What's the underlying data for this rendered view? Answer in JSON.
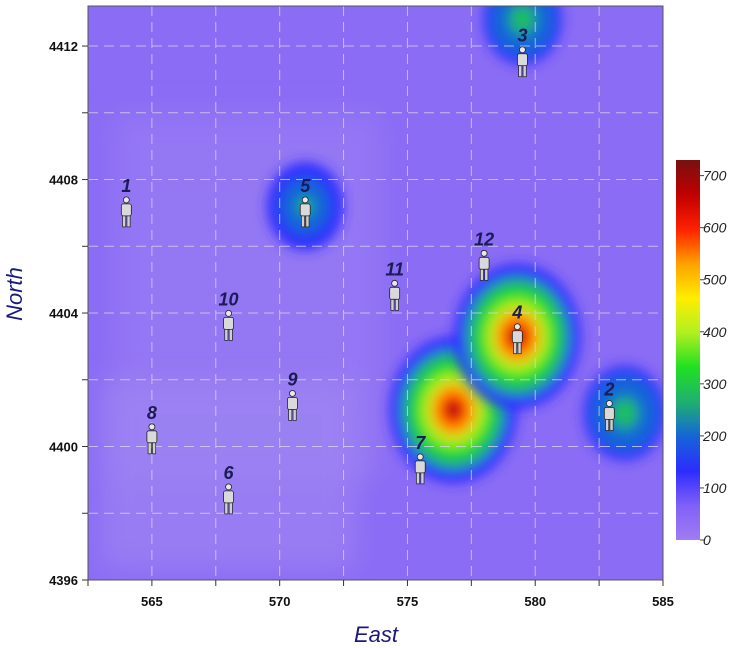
{
  "chart_data": {
    "type": "heatmap",
    "xlabel": "East",
    "ylabel": "North",
    "xlim": [
      562.5,
      585
    ],
    "ylim": [
      4396,
      4413.2
    ],
    "x_ticks": [
      565,
      570,
      575,
      580,
      585
    ],
    "y_ticks": [
      4396,
      4400,
      4404,
      4408,
      4412
    ],
    "grid": true,
    "colorbar": {
      "min": 0,
      "max": 730,
      "ticks": [
        0,
        100,
        200,
        300,
        400,
        500,
        600,
        700
      ],
      "stops": [
        "#a07cf2",
        "#8060f8",
        "#2c2cff",
        "#1565d8",
        "#1fb070",
        "#20e020",
        "#b0f020",
        "#ffee00",
        "#ffa000",
        "#ff2000",
        "#c00000",
        "#7a1010"
      ]
    },
    "points": [
      {
        "label": "1",
        "x": 564.0,
        "y": 4407.0,
        "value": 20
      },
      {
        "label": "2",
        "x": 582.9,
        "y": 4400.9,
        "value": 340
      },
      {
        "label": "3",
        "x": 579.5,
        "y": 4411.5,
        "value": 300
      },
      {
        "label": "4",
        "x": 579.3,
        "y": 4403.2,
        "value": 700
      },
      {
        "label": "5",
        "x": 571.0,
        "y": 4407.0,
        "value": 280
      },
      {
        "label": "6",
        "x": 568.0,
        "y": 4398.4,
        "value": 30
      },
      {
        "label": "7",
        "x": 575.5,
        "y": 4399.3,
        "value": 80
      },
      {
        "label": "8",
        "x": 565.0,
        "y": 4400.2,
        "value": 20
      },
      {
        "label": "9",
        "x": 570.5,
        "y": 4401.2,
        "value": 20
      },
      {
        "label": "10",
        "x": 568.0,
        "y": 4403.6,
        "value": 20
      },
      {
        "label": "11",
        "x": 574.5,
        "y": 4404.5,
        "value": 30
      },
      {
        "label": "12",
        "x": 578.0,
        "y": 4405.4,
        "value": 40
      }
    ],
    "hotspots": [
      {
        "x": 576.8,
        "y": 4401.1,
        "value": 720
      },
      {
        "x": 579.3,
        "y": 4403.3,
        "value": 710
      },
      {
        "x": 583.5,
        "y": 4401.0,
        "value": 330
      },
      {
        "x": 579.5,
        "y": 4412.8,
        "value": 300
      },
      {
        "x": 571.0,
        "y": 4407.2,
        "value": 280
      }
    ],
    "icon": "person-icon"
  }
}
